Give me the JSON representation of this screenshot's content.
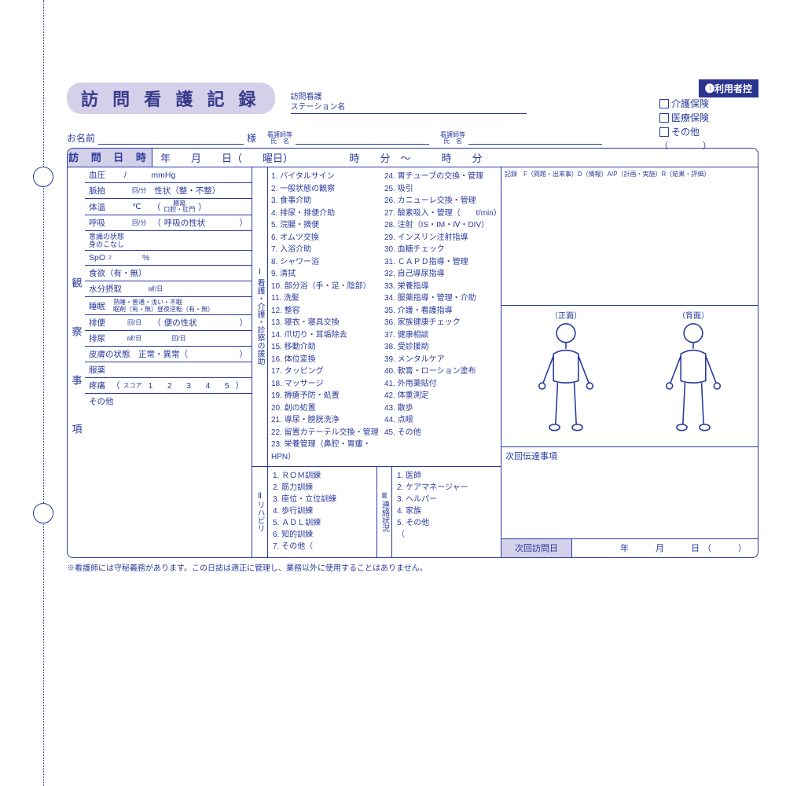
{
  "colors": {
    "ink": "#2a3a9c",
    "lavender": "#d4d0ea",
    "navy": "#2b3490",
    "white": "#ffffff"
  },
  "title": "訪 問 看 護 記 録",
  "station_label1": "訪問看護",
  "station_label2": "ステーション名",
  "copy_badge": "❶利用者控",
  "check1": "介護保険",
  "check2": "医療保険",
  "check3": "その他",
  "name_label": "お名前",
  "honorific": "様",
  "nurse1a": "看護師等",
  "nurse1b": "氏　名",
  "nurse2a": "看護師等",
  "nurse2b": "氏　名",
  "paren_open": "（",
  "paren_close": "）",
  "datetime_label": "訪 問 日 時",
  "datetime_body": "年　　月　　日（　　曜日）　　　　　　時　　分　～　　　時　　分",
  "obs_header": "観　察　事　項",
  "obs": {
    "bp": "血圧",
    "bp_unit": "/　　　mmHg",
    "pulse": "脈拍",
    "pulse_unit": "回/分",
    "pulse_note": "性状（整・不整）",
    "temp": "体温",
    "temp_unit": "℃",
    "temp_note1": "腋窩",
    "temp_note2": "口腔・肛門",
    "resp": "呼吸",
    "resp_unit": "回/分",
    "resp_note": "呼吸の性状",
    "conscious1": "意識の状態",
    "conscious2": "身のこなし",
    "spo2": "SpO",
    "spo2_sub": "2",
    "spo2_unit": "%",
    "appetite": "食欲（有・無）",
    "fluid": "水分摂取",
    "fluid_unit": "㎖/日",
    "sleep": "睡眠",
    "sleep_note1": "熟睡・普通・浅い・不眠",
    "sleep_note2": "眠剤（有・無）昼夜逆転（有・無）",
    "stool": "排便",
    "stool_unit": "回/日",
    "stool_note": "便の性状",
    "urine": "排尿",
    "urine_unit1": "㎖/日",
    "urine_unit2": "回/日",
    "skin": "皮膚の状態　正常・異常（",
    "med": "服薬",
    "pain": "疼痛",
    "pain_scale": "スコア",
    "pain_nums": "1　2　3　4　5",
    "other": "その他"
  },
  "care_vlabel": "Ⅰ 看護・介護・診察の援助",
  "care_items": [
    "1. バイタルサイン",
    "2. 一般状態の観察",
    "3. 食事介助",
    "4. 排尿・排便介助",
    "5. 浣腸・摘便",
    "6. オムツ交換",
    "7. 入浴介助",
    "8. シャワー浴",
    "9. 清拭",
    "10. 部分浴（手・足・陰部）",
    "11. 洗髪",
    "12. 整容",
    "13. 寝衣・寝具交換",
    "14. 爪切り・耳垢除去",
    "15. 移動介助",
    "16. 体位変換",
    "17. タッピング",
    "18. マッサージ",
    "19. 褥瘡予防・処置",
    "20. 創の処置",
    "21. 導尿・膀胱洗浄",
    "22. 留置カテーテル交換・管理",
    "23. 栄養管理（鼻腔・胃瘻・HPN）",
    "24. 胃チューブの交換・管理",
    "25. 吸引",
    "26. カニューレ交換・管理",
    "27. 酸素吸入・管理（　　ℓ/min）",
    "28. 注射（IS・IM・Ⅳ・DIV）",
    "29. インスリン注射指導",
    "30. 血糖チェック",
    "31. ＣＡＰＤ指導・管理",
    "32. 自己導尿指導",
    "33. 栄養指導",
    "34. 服薬指導・管理・介助",
    "35. 介護・看護指導",
    "36. 家族健康チェック",
    "37. 健康相談",
    "38. 受診援助",
    "39. メンタルケア",
    "40. 軟膏・ローション塗布",
    "41. 外用薬貼付",
    "42. 体重測定",
    "43. 散歩",
    "44. 点眼",
    "45. その他"
  ],
  "rehab_vlabel": "Ⅱリハビリ",
  "rehab_items": [
    "1. ＲＯＭ訓練",
    "2. 筋力訓練",
    "3. 座位・立位訓練",
    "4. 歩行訓練",
    "5. ＡＤＬ訓練",
    "6. 知的訓練",
    "7. その他（"
  ],
  "contact_vlabel": "Ⅲ連絡状況",
  "contact_items": [
    "1. 医師",
    "2. ケアマネージャー",
    "3. ヘルパー",
    "4. 家族",
    "5. その他",
    "（"
  ],
  "record_note": "記録　F（問題・出来事）D（情報）A/P（計画・実施）R（結果・評価）",
  "front_label": "（正面）",
  "back_label": "（背面）",
  "msg_label": "次回伝達事項",
  "next_label": "次回訪問日",
  "next_body": "年　　月　　日（　　）",
  "footnote": "※看護師には守秘義務があります。この日誌は適正に管理し、業務以外に使用することはありません。"
}
